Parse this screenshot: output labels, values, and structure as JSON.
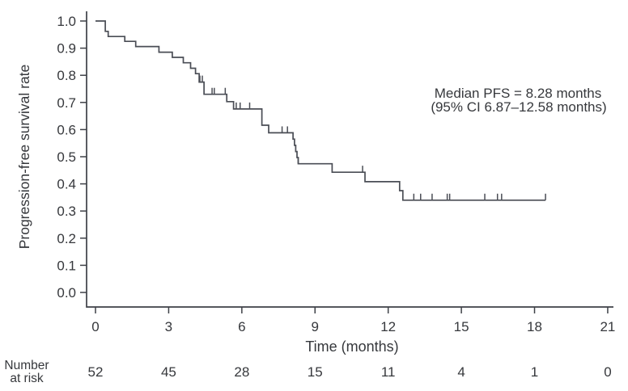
{
  "figure": {
    "background": "#ffffff",
    "curve_color": "#4a4d55",
    "axis_color": "#3e4147",
    "text_color": "#36383c"
  },
  "chart_data": {
    "type": "line",
    "subtype": "kaplan_meier_step",
    "title": "",
    "xlabel": "Time (months)",
    "ylabel": "Progression-free survival rate",
    "xlim": [
      0,
      21
    ],
    "ylim": [
      0.0,
      1.0
    ],
    "grid": false,
    "legend": "none",
    "xticks": [
      0,
      3,
      6,
      9,
      12,
      15,
      18,
      21
    ],
    "xtick_labels": [
      "0",
      "3",
      "6",
      "9",
      "12",
      "15",
      "18",
      "21"
    ],
    "yticks": [
      0,
      0.1,
      0.2,
      0.3,
      0.4,
      0.5,
      0.6,
      0.7,
      0.8,
      0.9,
      1.0
    ],
    "ytick_labels": [
      "0.0",
      "0.1",
      "0.2",
      "0.3",
      "0.4",
      "0.5",
      "0.6",
      "0.7",
      "0.8",
      "0.9",
      "1.0"
    ],
    "annotation": {
      "line1": "Median PFS = 8.28 months",
      "line2": "(95% CI 6.87–12.58 months)"
    },
    "median_pfs_months": 8.28,
    "ci95_months": "6.87–12.58",
    "series": [
      {
        "name": "Progression-free survival",
        "steps": [
          [
            0.0,
            1.0
          ],
          [
            0.4,
            0.962
          ],
          [
            0.52,
            0.943
          ],
          [
            1.2,
            0.925
          ],
          [
            1.65,
            0.906
          ],
          [
            2.6,
            0.885
          ],
          [
            3.15,
            0.866
          ],
          [
            3.6,
            0.846
          ],
          [
            3.9,
            0.826
          ],
          [
            4.1,
            0.806
          ],
          [
            4.25,
            0.775
          ],
          [
            4.45,
            0.73
          ],
          [
            5.38,
            0.703
          ],
          [
            5.66,
            0.676
          ],
          [
            6.82,
            0.616
          ],
          [
            7.1,
            0.588
          ],
          [
            8.1,
            0.565
          ],
          [
            8.16,
            0.542
          ],
          [
            8.21,
            0.519
          ],
          [
            8.26,
            0.497
          ],
          [
            8.31,
            0.474
          ],
          [
            9.7,
            0.443
          ],
          [
            11.05,
            0.408
          ],
          [
            12.47,
            0.375
          ],
          [
            12.6,
            0.34
          ]
        ],
        "end_time": 18.45,
        "censor_marks": [
          [
            4.28,
            0.775
          ],
          [
            4.38,
            0.775
          ],
          [
            4.78,
            0.73
          ],
          [
            4.87,
            0.73
          ],
          [
            5.32,
            0.73
          ],
          [
            5.77,
            0.676
          ],
          [
            5.93,
            0.676
          ],
          [
            6.32,
            0.676
          ],
          [
            7.65,
            0.588
          ],
          [
            7.87,
            0.588
          ],
          [
            8.31,
            0.474
          ],
          [
            10.95,
            0.443
          ],
          [
            13.05,
            0.34
          ],
          [
            13.33,
            0.34
          ],
          [
            13.8,
            0.34
          ],
          [
            14.42,
            0.34
          ],
          [
            14.52,
            0.34
          ],
          [
            15.96,
            0.34
          ],
          [
            16.48,
            0.34
          ],
          [
            16.65,
            0.34
          ],
          [
            18.45,
            0.34
          ]
        ]
      }
    ],
    "number_at_risk": {
      "label_line1": "Number",
      "label_line2": "at risk",
      "times": [
        0,
        3,
        6,
        9,
        12,
        15,
        18,
        21
      ],
      "counts": [
        52,
        45,
        28,
        15,
        11,
        4,
        1,
        0
      ]
    }
  }
}
